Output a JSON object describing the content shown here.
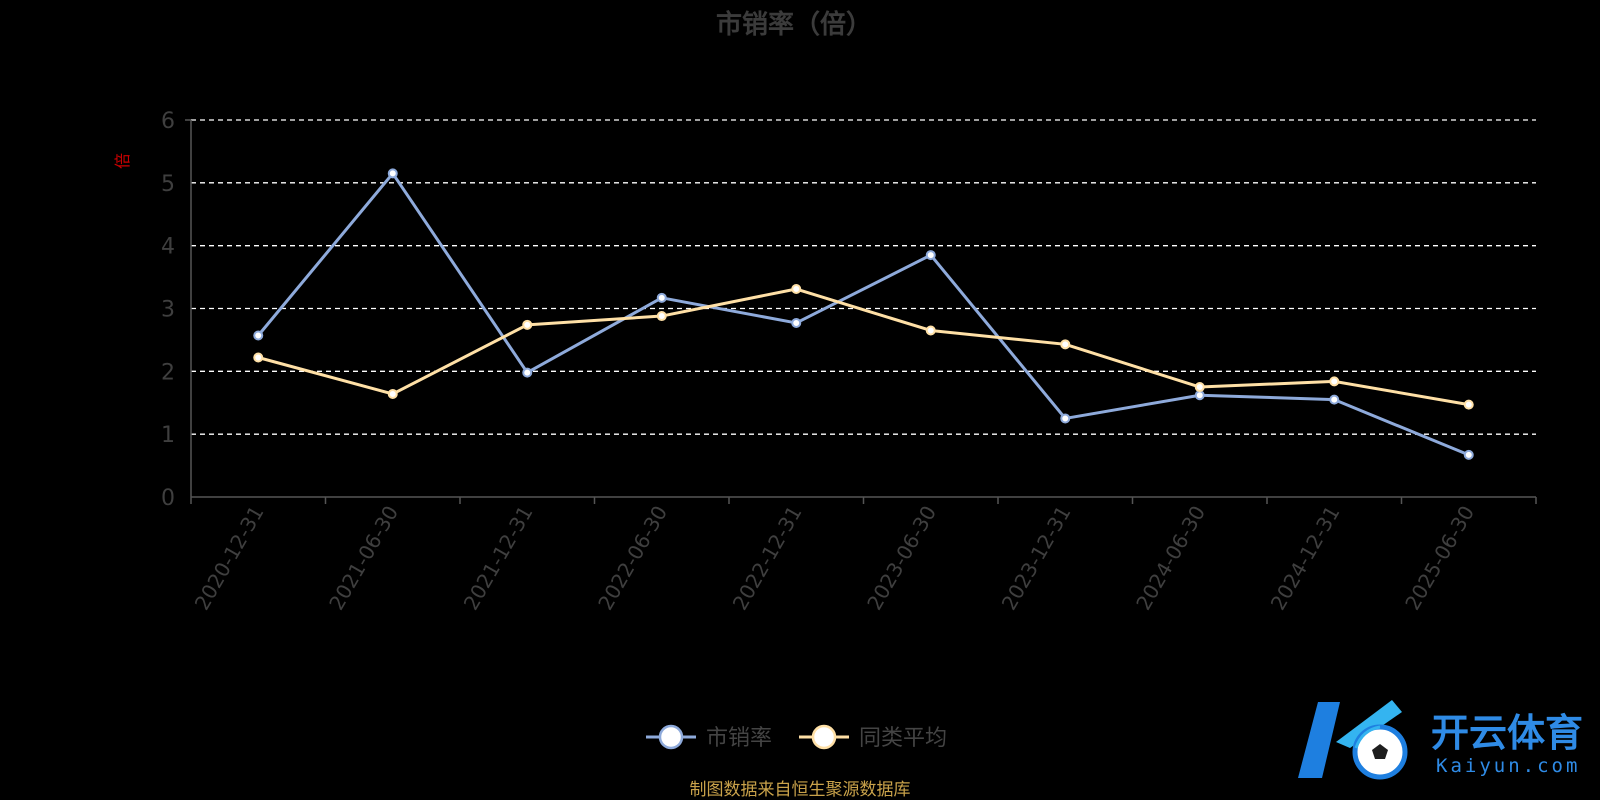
{
  "chart_data": {
    "type": "line",
    "title": "市销率（倍）",
    "ylabel": "倍",
    "ylim": [
      0,
      6
    ],
    "yticks": [
      "0",
      "1",
      "2",
      "3",
      "4",
      "5",
      "6"
    ],
    "categories": [
      "2020-12-31",
      "2021-06-30",
      "2021-12-31",
      "2022-06-30",
      "2022-12-31",
      "2023-06-30",
      "2023-12-31",
      "2024-06-30",
      "2024-12-31",
      "2025-06-30"
    ],
    "series": [
      {
        "name": "市销率",
        "color": "#8eaadb",
        "values": [
          2.57,
          5.15,
          1.98,
          3.17,
          2.77,
          3.85,
          1.25,
          1.62,
          1.55,
          0.67
        ]
      },
      {
        "name": "同类平均",
        "color": "#ffe0a6",
        "values": [
          2.22,
          1.64,
          2.74,
          2.88,
          3.31,
          2.65,
          2.43,
          1.75,
          1.84,
          1.47
        ]
      }
    ],
    "grid": true,
    "legend_position": "bottom-center"
  },
  "source_note": "制图数据来自恒生聚源数据库",
  "brand": {
    "name_cn": "开云体育",
    "name_en": "Kaiyun.com"
  }
}
